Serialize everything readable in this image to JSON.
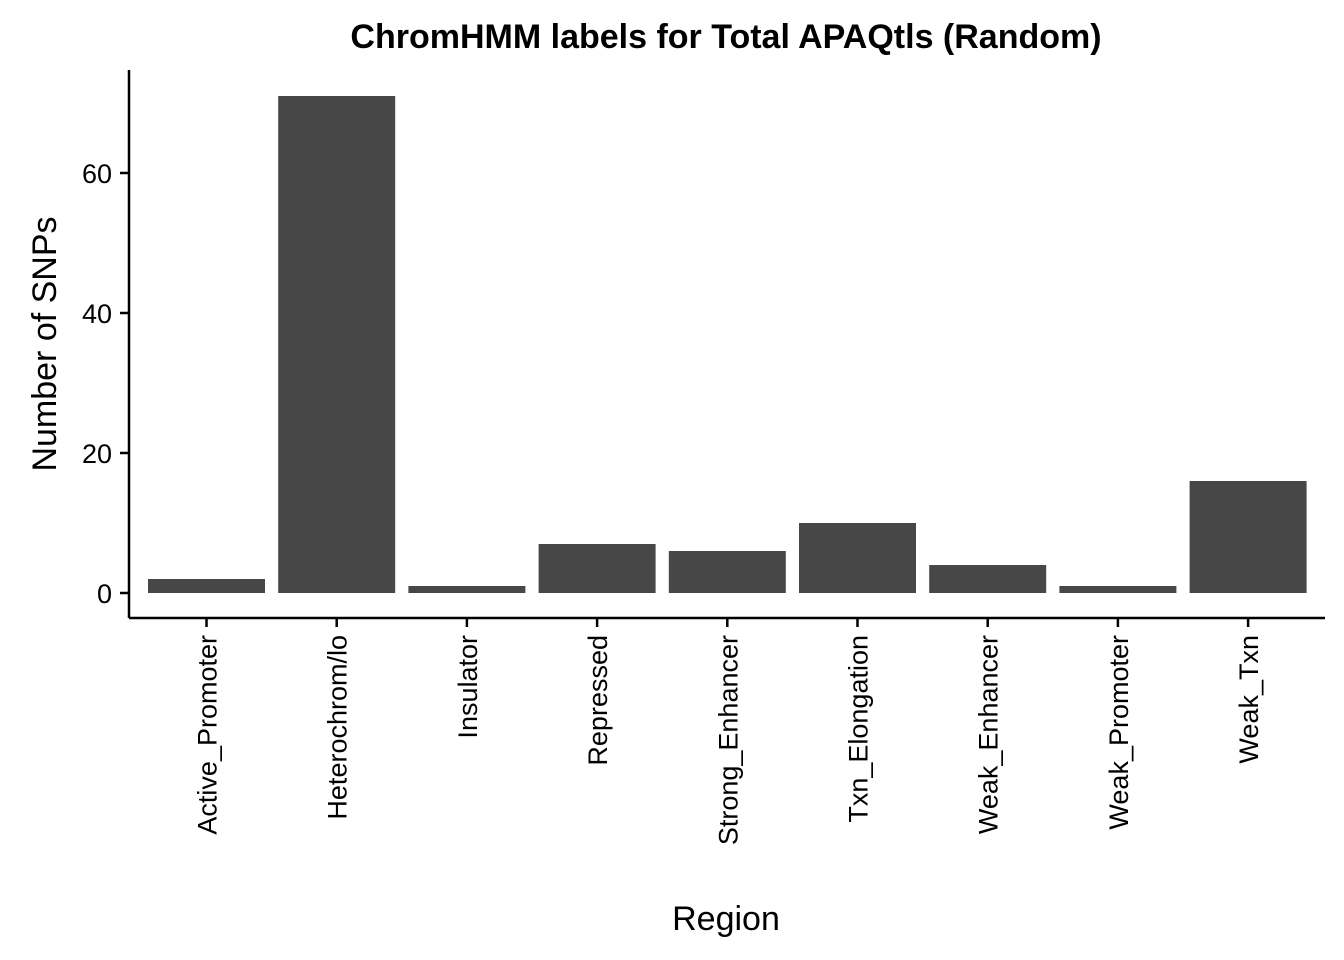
{
  "chart_data": {
    "type": "bar",
    "title": "ChromHMM labels for Total APAQtls (Random)",
    "xlabel": "Region",
    "ylabel": "Number of SNPs",
    "categories": [
      "Active_Promoter",
      "Heterochrom/lo",
      "Insulator",
      "Repressed",
      "Strong_Enhancer",
      "Txn_Elongation",
      "Weak_Enhancer",
      "Weak_Promoter",
      "Weak_Txn"
    ],
    "values": [
      2,
      71,
      1,
      7,
      6,
      10,
      4,
      1,
      16
    ],
    "yticks": [
      0,
      20,
      40,
      60
    ],
    "ylim": [
      0,
      71
    ],
    "bar_color": "#474747",
    "grid": false,
    "legend": "none"
  }
}
